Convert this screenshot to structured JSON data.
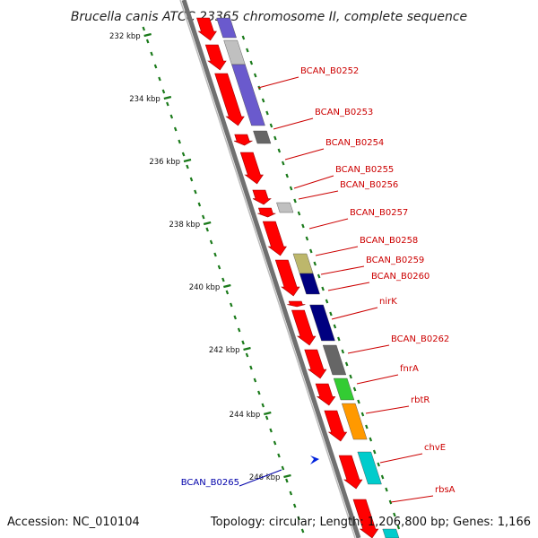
{
  "title": "Brucella canis ATCC 23365 chromosome II, complete sequence",
  "footer": {
    "accession": "Accession: NC_010104",
    "summary": "Topology: circular; Length: 1,206,800 bp; Genes: 1,166"
  },
  "colors": {
    "forward_gene": "#ff0000",
    "reverse_gene": "#d00000",
    "backbone": "#888888",
    "tick": "#1a7a1a",
    "label_red": "#cc0000",
    "label_blue": "#0000aa",
    "cog_purple": "#6a5acd",
    "cog_lightgray": "#c0c0c0",
    "cog_darkgray": "#666666",
    "cog_olive": "#bdb76b",
    "cog_navy": "#000080",
    "cog_green": "#33cc33",
    "cog_orange": "#ff9900",
    "cog_cyan": "#00cccc"
  },
  "ticks": [
    "232 kbp",
    "234 kbp",
    "236 kbp",
    "238 kbp",
    "240 kbp",
    "242 kbp",
    "244 kbp",
    "246 kbp"
  ],
  "gene_labels": [
    {
      "text": "BCAN_B0252",
      "color": "red"
    },
    {
      "text": "BCAN_B0253",
      "color": "red"
    },
    {
      "text": "BCAN_B0254",
      "color": "red"
    },
    {
      "text": "BCAN_B0255",
      "color": "red"
    },
    {
      "text": "BCAN_B0256",
      "color": "red"
    },
    {
      "text": "BCAN_B0257",
      "color": "red"
    },
    {
      "text": "BCAN_B0258",
      "color": "red"
    },
    {
      "text": "BCAN_B0259",
      "color": "red"
    },
    {
      "text": "BCAN_B0260",
      "color": "red"
    },
    {
      "text": "nirK",
      "color": "red"
    },
    {
      "text": "BCAN_B0262",
      "color": "red"
    },
    {
      "text": "fnrA",
      "color": "red"
    },
    {
      "text": "rbtR",
      "color": "red"
    },
    {
      "text": "chvE",
      "color": "red"
    },
    {
      "text": "rbsA",
      "color": "red"
    },
    {
      "text": "BCAN_B0265",
      "color": "blue"
    }
  ]
}
